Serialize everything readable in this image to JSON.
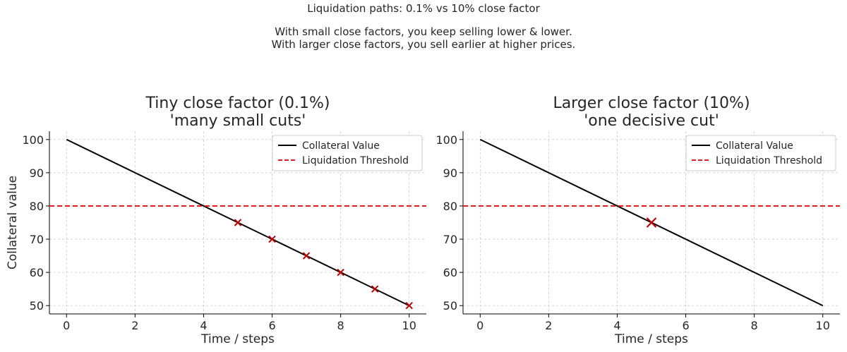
{
  "figure": {
    "suptitle_lines": [
      "Liquidation paths: 0.1% vs 10% close factor",
      "",
      "With small close factors, you keep selling lower & lower.",
      "With larger close factors, you sell earlier at higher prices."
    ]
  },
  "chart_data": [
    {
      "type": "line",
      "title_lines": [
        "Tiny close factor (0.1%)",
        "'many small cuts'"
      ],
      "xlabel": "Time / steps",
      "ylabel": "Collateral value",
      "xlim": [
        -0.5,
        10.5
      ],
      "ylim": [
        47.5,
        102.5
      ],
      "xticks": [
        0,
        2,
        4,
        6,
        8,
        10
      ],
      "yticks": [
        50,
        60,
        70,
        80,
        90,
        100
      ],
      "grid": true,
      "legend_position": "top-right",
      "series": [
        {
          "name": "Collateral Value",
          "kind": "line",
          "color": "#000000",
          "x": [
            0,
            10
          ],
          "y": [
            100,
            50
          ]
        },
        {
          "name": "Liquidation Threshold",
          "kind": "hline",
          "color": "#e41a1c",
          "y": 80
        }
      ],
      "markers": {
        "color": "#c00000",
        "x": [
          5,
          6,
          7,
          8,
          9,
          10
        ],
        "y": [
          75,
          70,
          65,
          60,
          55,
          50
        ],
        "size": "small"
      }
    },
    {
      "type": "line",
      "title_lines": [
        "Larger close factor (10%)",
        "'one decisive cut'"
      ],
      "xlabel": "Time / steps",
      "ylabel": "",
      "xlim": [
        -0.5,
        10.5
      ],
      "ylim": [
        47.5,
        102.5
      ],
      "xticks": [
        0,
        2,
        4,
        6,
        8,
        10
      ],
      "yticks": [
        50,
        60,
        70,
        80,
        90,
        100
      ],
      "grid": true,
      "legend_position": "top-right",
      "series": [
        {
          "name": "Collateral Value",
          "kind": "line",
          "color": "#000000",
          "x": [
            0,
            10
          ],
          "y": [
            100,
            50
          ]
        },
        {
          "name": "Liquidation Threshold",
          "kind": "hline",
          "color": "#e41a1c",
          "y": 80
        }
      ],
      "markers": {
        "color": "#c00000",
        "x": [
          5
        ],
        "y": [
          75
        ],
        "size": "large"
      }
    }
  ]
}
